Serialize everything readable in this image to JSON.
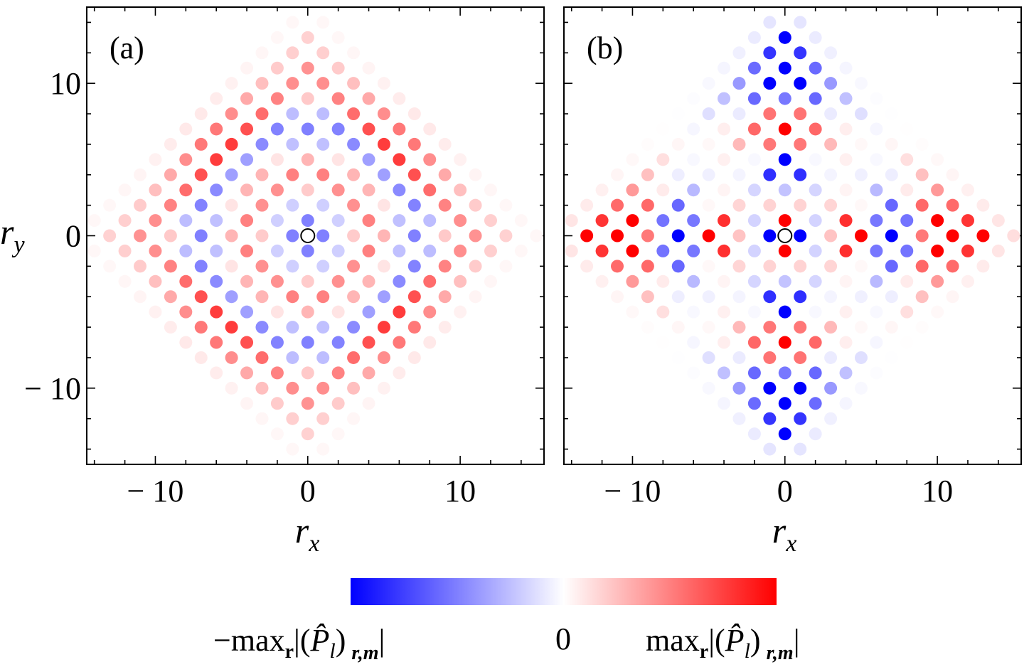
{
  "chart_data": [
    {
      "type": "scatter",
      "panel_label": "(a)",
      "pattern": "a",
      "lattice": "checkerboard sites (r_x + r_y odd), |r_x| + |r_y| <= 15",
      "center_marker": {
        "x": 0,
        "y": 0,
        "style": "open-circle"
      },
      "xlabel": "r",
      "xlabel_sub": "x",
      "ylabel": "r",
      "ylabel_sub": "y",
      "xlim": [
        -14.5,
        15.5
      ],
      "ylim": [
        -15,
        15
      ],
      "xticks": [
        -10,
        0,
        10
      ],
      "xtick_labels": [
        "− 10",
        "0",
        "10"
      ],
      "yticks": [
        -10,
        0,
        10
      ],
      "ytick_labels": [
        "− 10",
        "0",
        "10"
      ]
    },
    {
      "type": "scatter",
      "panel_label": "(b)",
      "pattern": "b",
      "lattice": "checkerboard sites (r_x + r_y odd), |r_x| + |r_y| <= 15",
      "center_marker": {
        "x": 0,
        "y": 0,
        "style": "open-circle"
      },
      "xlabel": "r",
      "xlabel_sub": "x",
      "xlim": [
        -14.5,
        15.5
      ],
      "ylim": [
        -15,
        15
      ],
      "xticks": [
        -10,
        0,
        10
      ],
      "xtick_labels": [
        "− 10",
        "0",
        "10"
      ],
      "yticks": [
        -10,
        0,
        10
      ]
    }
  ],
  "colorbar": {
    "colors": {
      "negative": "#0000ff",
      "zero": "#ffffff",
      "positive": "#ff0000"
    },
    "label_min": "−max",
    "label_mid": "0",
    "label_max": "max",
    "sub_r": "r",
    "expr_open": "|(",
    "p_hat": "P̂",
    "p_sub": "l",
    "expr_close": ")",
    "expr_sub": "r,m",
    "expr_end": "|"
  }
}
